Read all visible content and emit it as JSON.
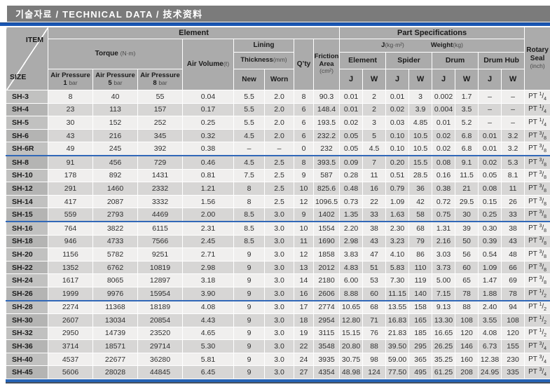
{
  "title": "기술자료 / TECHNICAL DATA / 技术资料",
  "colors": {
    "title_bar": "#7b7b7b",
    "accent_blue": "#1a57b4",
    "header_gray": "#ababab",
    "row_light": "#f0efee",
    "row_dark": "#d7d6d5",
    "group_separator": "#3168b8"
  },
  "header": {
    "item": "ITEM",
    "size": "SIZE",
    "element_group": "Element",
    "part_specifications": "Part Specifications",
    "torque": {
      "label": "Torque",
      "unit": "(N·m)"
    },
    "air_pressure_label": "Air Pressure",
    "air_pressures": [
      {
        "num": "1",
        "unit": "bar"
      },
      {
        "num": "5",
        "unit": "bar"
      },
      {
        "num": "8",
        "unit": "bar"
      }
    ],
    "air_volume": {
      "label": "Air Volume",
      "unit": "(ℓ)"
    },
    "lining": "Lining",
    "thickness": {
      "label": "Thickness",
      "unit": "(mm)"
    },
    "new": "New",
    "worn": "Worn",
    "qty": "Q’ty",
    "friction": {
      "label": "Friction Area",
      "unit": "(cm²)"
    },
    "j_legend": {
      "label": "J",
      "unit": "(kg·m²)"
    },
    "weight_legend": {
      "label": "Weight",
      "unit": "(kg)"
    },
    "parts": [
      "Element",
      "Spider",
      "Drum",
      "Drum Hub"
    ],
    "j": "J",
    "w": "W",
    "rotary": {
      "label": "Rotary Seal",
      "unit": "(inch)"
    }
  },
  "table": {
    "column_keys": [
      "item",
      "ap1",
      "ap5",
      "ap8",
      "air_volume",
      "new",
      "worn",
      "qty",
      "friction",
      "element_j",
      "element_w",
      "spider_j",
      "spider_w",
      "drum_j",
      "drum_w",
      "drumhub_j",
      "drumhub_w",
      "seal"
    ],
    "group_start_items": [
      "SH-8",
      "SH-16",
      "SH-28"
    ],
    "rows": [
      {
        "item": "SH-3",
        "ap1": "8",
        "ap5": "40",
        "ap8": "55",
        "air_volume": "0.04",
        "new": "5.5",
        "worn": "2.0",
        "qty": "8",
        "friction": "90.3",
        "element_j": "0.01",
        "element_w": "2",
        "spider_j": "0.01",
        "spider_w": "3",
        "drum_j": "0.002",
        "drum_w": "1.7",
        "drumhub_j": "–",
        "drumhub_w": "–",
        "seal": "PT 1/4"
      },
      {
        "item": "SH-4",
        "ap1": "23",
        "ap5": "113",
        "ap8": "157",
        "air_volume": "0.17",
        "new": "5.5",
        "worn": "2.0",
        "qty": "6",
        "friction": "148.4",
        "element_j": "0.01",
        "element_w": "2",
        "spider_j": "0.02",
        "spider_w": "3.9",
        "drum_j": "0.004",
        "drum_w": "3.5",
        "drumhub_j": "–",
        "drumhub_w": "–",
        "seal": "PT 1/4"
      },
      {
        "item": "SH-5",
        "ap1": "30",
        "ap5": "152",
        "ap8": "252",
        "air_volume": "0.25",
        "new": "5.5",
        "worn": "2.0",
        "qty": "6",
        "friction": "193.5",
        "element_j": "0.02",
        "element_w": "3",
        "spider_j": "0.03",
        "spider_w": "4.85",
        "drum_j": "0.01",
        "drum_w": "5.2",
        "drumhub_j": "–",
        "drumhub_w": "–",
        "seal": "PT 1/4"
      },
      {
        "item": "SH-6",
        "ap1": "43",
        "ap5": "216",
        "ap8": "345",
        "air_volume": "0.32",
        "new": "4.5",
        "worn": "2.0",
        "qty": "6",
        "friction": "232.2",
        "element_j": "0.05",
        "element_w": "5",
        "spider_j": "0.10",
        "spider_w": "10.5",
        "drum_j": "0.02",
        "drum_w": "6.8",
        "drumhub_j": "0.01",
        "drumhub_w": "3.2",
        "seal": "PT 3/8"
      },
      {
        "item": "SH-6R",
        "ap1": "49",
        "ap5": "245",
        "ap8": "392",
        "air_volume": "0.38",
        "new": "–",
        "worn": "–",
        "qty": "0",
        "friction": "232",
        "element_j": "0.05",
        "element_w": "4.5",
        "spider_j": "0.10",
        "spider_w": "10.5",
        "drum_j": "0.02",
        "drum_w": "6.8",
        "drumhub_j": "0.01",
        "drumhub_w": "3.2",
        "seal": "PT 3/8"
      },
      {
        "item": "SH-8",
        "ap1": "91",
        "ap5": "456",
        "ap8": "729",
        "air_volume": "0.46",
        "new": "4.5",
        "worn": "2.5",
        "qty": "8",
        "friction": "393.5",
        "element_j": "0.09",
        "element_w": "7",
        "spider_j": "0.20",
        "spider_w": "15.5",
        "drum_j": "0.08",
        "drum_w": "9.1",
        "drumhub_j": "0.02",
        "drumhub_w": "5.3",
        "seal": "PT 3/8"
      },
      {
        "item": "SH-10",
        "ap1": "178",
        "ap5": "892",
        "ap8": "1431",
        "air_volume": "0.81",
        "new": "7.5",
        "worn": "2.5",
        "qty": "9",
        "friction": "587",
        "element_j": "0.28",
        "element_w": "11",
        "spider_j": "0.51",
        "spider_w": "28.5",
        "drum_j": "0.16",
        "drum_w": "11.5",
        "drumhub_j": "0.05",
        "drumhub_w": "8.1",
        "seal": "PT 3/8"
      },
      {
        "item": "SH-12",
        "ap1": "291",
        "ap5": "1460",
        "ap8": "2332",
        "air_volume": "1.21",
        "new": "8",
        "worn": "2.5",
        "qty": "10",
        "friction": "825.6",
        "element_j": "0.48",
        "element_w": "16",
        "spider_j": "0.79",
        "spider_w": "36",
        "drum_j": "0.38",
        "drum_w": "21",
        "drumhub_j": "0.08",
        "drumhub_w": "11",
        "seal": "PT 3/8"
      },
      {
        "item": "SH-14",
        "ap1": "417",
        "ap5": "2087",
        "ap8": "3332",
        "air_volume": "1.56",
        "new": "8",
        "worn": "2.5",
        "qty": "12",
        "friction": "1096.5",
        "element_j": "0.73",
        "element_w": "22",
        "spider_j": "1.09",
        "spider_w": "42",
        "drum_j": "0.72",
        "drum_w": "29.5",
        "drumhub_j": "0.15",
        "drumhub_w": "26",
        "seal": "PT 3/8"
      },
      {
        "item": "SH-15",
        "ap1": "559",
        "ap5": "2793",
        "ap8": "4469",
        "air_volume": "2.00",
        "new": "8.5",
        "worn": "3.0",
        "qty": "9",
        "friction": "1402",
        "element_j": "1.35",
        "element_w": "33",
        "spider_j": "1.63",
        "spider_w": "58",
        "drum_j": "0.75",
        "drum_w": "30",
        "drumhub_j": "0.25",
        "drumhub_w": "33",
        "seal": "PT 3/8"
      },
      {
        "item": "SH-16",
        "ap1": "764",
        "ap5": "3822",
        "ap8": "6115",
        "air_volume": "2.31",
        "new": "8.5",
        "worn": "3.0",
        "qty": "10",
        "friction": "1554",
        "element_j": "2.20",
        "element_w": "38",
        "spider_j": "2.30",
        "spider_w": "68",
        "drum_j": "1.31",
        "drum_w": "39",
        "drumhub_j": "0.30",
        "drumhub_w": "38",
        "seal": "PT 3/8"
      },
      {
        "item": "SH-18",
        "ap1": "946",
        "ap5": "4733",
        "ap8": "7566",
        "air_volume": "2.45",
        "new": "8.5",
        "worn": "3.0",
        "qty": "11",
        "friction": "1690",
        "element_j": "2.98",
        "element_w": "43",
        "spider_j": "3.23",
        "spider_w": "79",
        "drum_j": "2.16",
        "drum_w": "50",
        "drumhub_j": "0.39",
        "drumhub_w": "43",
        "seal": "PT 3/8"
      },
      {
        "item": "SH-20",
        "ap1": "1156",
        "ap5": "5782",
        "ap8": "9251",
        "air_volume": "2.71",
        "new": "9",
        "worn": "3.0",
        "qty": "12",
        "friction": "1858",
        "element_j": "3.83",
        "element_w": "47",
        "spider_j": "4.10",
        "spider_w": "86",
        "drum_j": "3.03",
        "drum_w": "56",
        "drumhub_j": "0.54",
        "drumhub_w": "48",
        "seal": "PT 3/8"
      },
      {
        "item": "SH-22",
        "ap1": "1352",
        "ap5": "6762",
        "ap8": "10819",
        "air_volume": "2.98",
        "new": "9",
        "worn": "3.0",
        "qty": "13",
        "friction": "2012",
        "element_j": "4.83",
        "element_w": "51",
        "spider_j": "5.83",
        "spider_w": "110",
        "drum_j": "3.73",
        "drum_w": "60",
        "drumhub_j": "1.09",
        "drumhub_w": "66",
        "seal": "PT 3/8"
      },
      {
        "item": "SH-24",
        "ap1": "1617",
        "ap5": "8065",
        "ap8": "12897",
        "air_volume": "3.18",
        "new": "9",
        "worn": "3.0",
        "qty": "14",
        "friction": "2180",
        "element_j": "6.00",
        "element_w": "53",
        "spider_j": "7.30",
        "spider_w": "119",
        "drum_j": "5.00",
        "drum_w": "65",
        "drumhub_j": "1.47",
        "drumhub_w": "69",
        "seal": "PT 3/8"
      },
      {
        "item": "SH-26",
        "ap1": "1999",
        "ap5": "9976",
        "ap8": "15954",
        "air_volume": "3.90",
        "new": "9",
        "worn": "3.0",
        "qty": "16",
        "friction": "2606",
        "element_j": "8.88",
        "element_w": "60",
        "spider_j": "11.15",
        "spider_w": "140",
        "drum_j": "7.15",
        "drum_w": "78",
        "drumhub_j": "1.88",
        "drumhub_w": "78",
        "seal": "PT 1/2"
      },
      {
        "item": "SH-28",
        "ap1": "2274",
        "ap5": "11368",
        "ap8": "18189",
        "air_volume": "4.08",
        "new": "9",
        "worn": "3.0",
        "qty": "17",
        "friction": "2774",
        "element_j": "10.65",
        "element_w": "68",
        "spider_j": "13.55",
        "spider_w": "158",
        "drum_j": "9.13",
        "drum_w": "88",
        "drumhub_j": "2.40",
        "drumhub_w": "94",
        "seal": "PT 1/2"
      },
      {
        "item": "SH-30",
        "ap1": "2607",
        "ap5": "13034",
        "ap8": "20854",
        "air_volume": "4.43",
        "new": "9",
        "worn": "3.0",
        "qty": "18",
        "friction": "2954",
        "element_j": "12.80",
        "element_w": "71",
        "spider_j": "16.83",
        "spider_w": "165",
        "drum_j": "13.30",
        "drum_w": "108",
        "drumhub_j": "3.55",
        "drumhub_w": "108",
        "seal": "PT 1/2"
      },
      {
        "item": "SH-32",
        "ap1": "2950",
        "ap5": "14739",
        "ap8": "23520",
        "air_volume": "4.65",
        "new": "9",
        "worn": "3.0",
        "qty": "19",
        "friction": "3115",
        "element_j": "15.15",
        "element_w": "76",
        "spider_j": "21.83",
        "spider_w": "185",
        "drum_j": "16.65",
        "drum_w": "120",
        "drumhub_j": "4.08",
        "drumhub_w": "120",
        "seal": "PT 1/2"
      },
      {
        "item": "SH-36",
        "ap1": "3714",
        "ap5": "18571",
        "ap8": "29714",
        "air_volume": "5.30",
        "new": "9",
        "worn": "3.0",
        "qty": "22",
        "friction": "3548",
        "element_j": "20.80",
        "element_w": "88",
        "spider_j": "39.50",
        "spider_w": "295",
        "drum_j": "26.25",
        "drum_w": "146",
        "drumhub_j": "6.73",
        "drumhub_w": "155",
        "seal": "PT 3/4"
      },
      {
        "item": "SH-40",
        "ap1": "4537",
        "ap5": "22677",
        "ap8": "36280",
        "air_volume": "5.81",
        "new": "9",
        "worn": "3.0",
        "qty": "24",
        "friction": "3935",
        "element_j": "30.75",
        "element_w": "98",
        "spider_j": "59.00",
        "spider_w": "365",
        "drum_j": "35.25",
        "drum_w": "160",
        "drumhub_j": "12.38",
        "drumhub_w": "230",
        "seal": "PT 3/4"
      },
      {
        "item": "SH-45",
        "ap1": "5606",
        "ap5": "28028",
        "ap8": "44845",
        "air_volume": "6.45",
        "new": "9",
        "worn": "3.0",
        "qty": "27",
        "friction": "4354",
        "element_j": "48.98",
        "element_w": "124",
        "spider_j": "77.50",
        "spider_w": "495",
        "drum_j": "61.25",
        "drum_w": "208",
        "drumhub_j": "24.95",
        "drumhub_w": "335",
        "seal": "PT 3/4"
      }
    ]
  }
}
